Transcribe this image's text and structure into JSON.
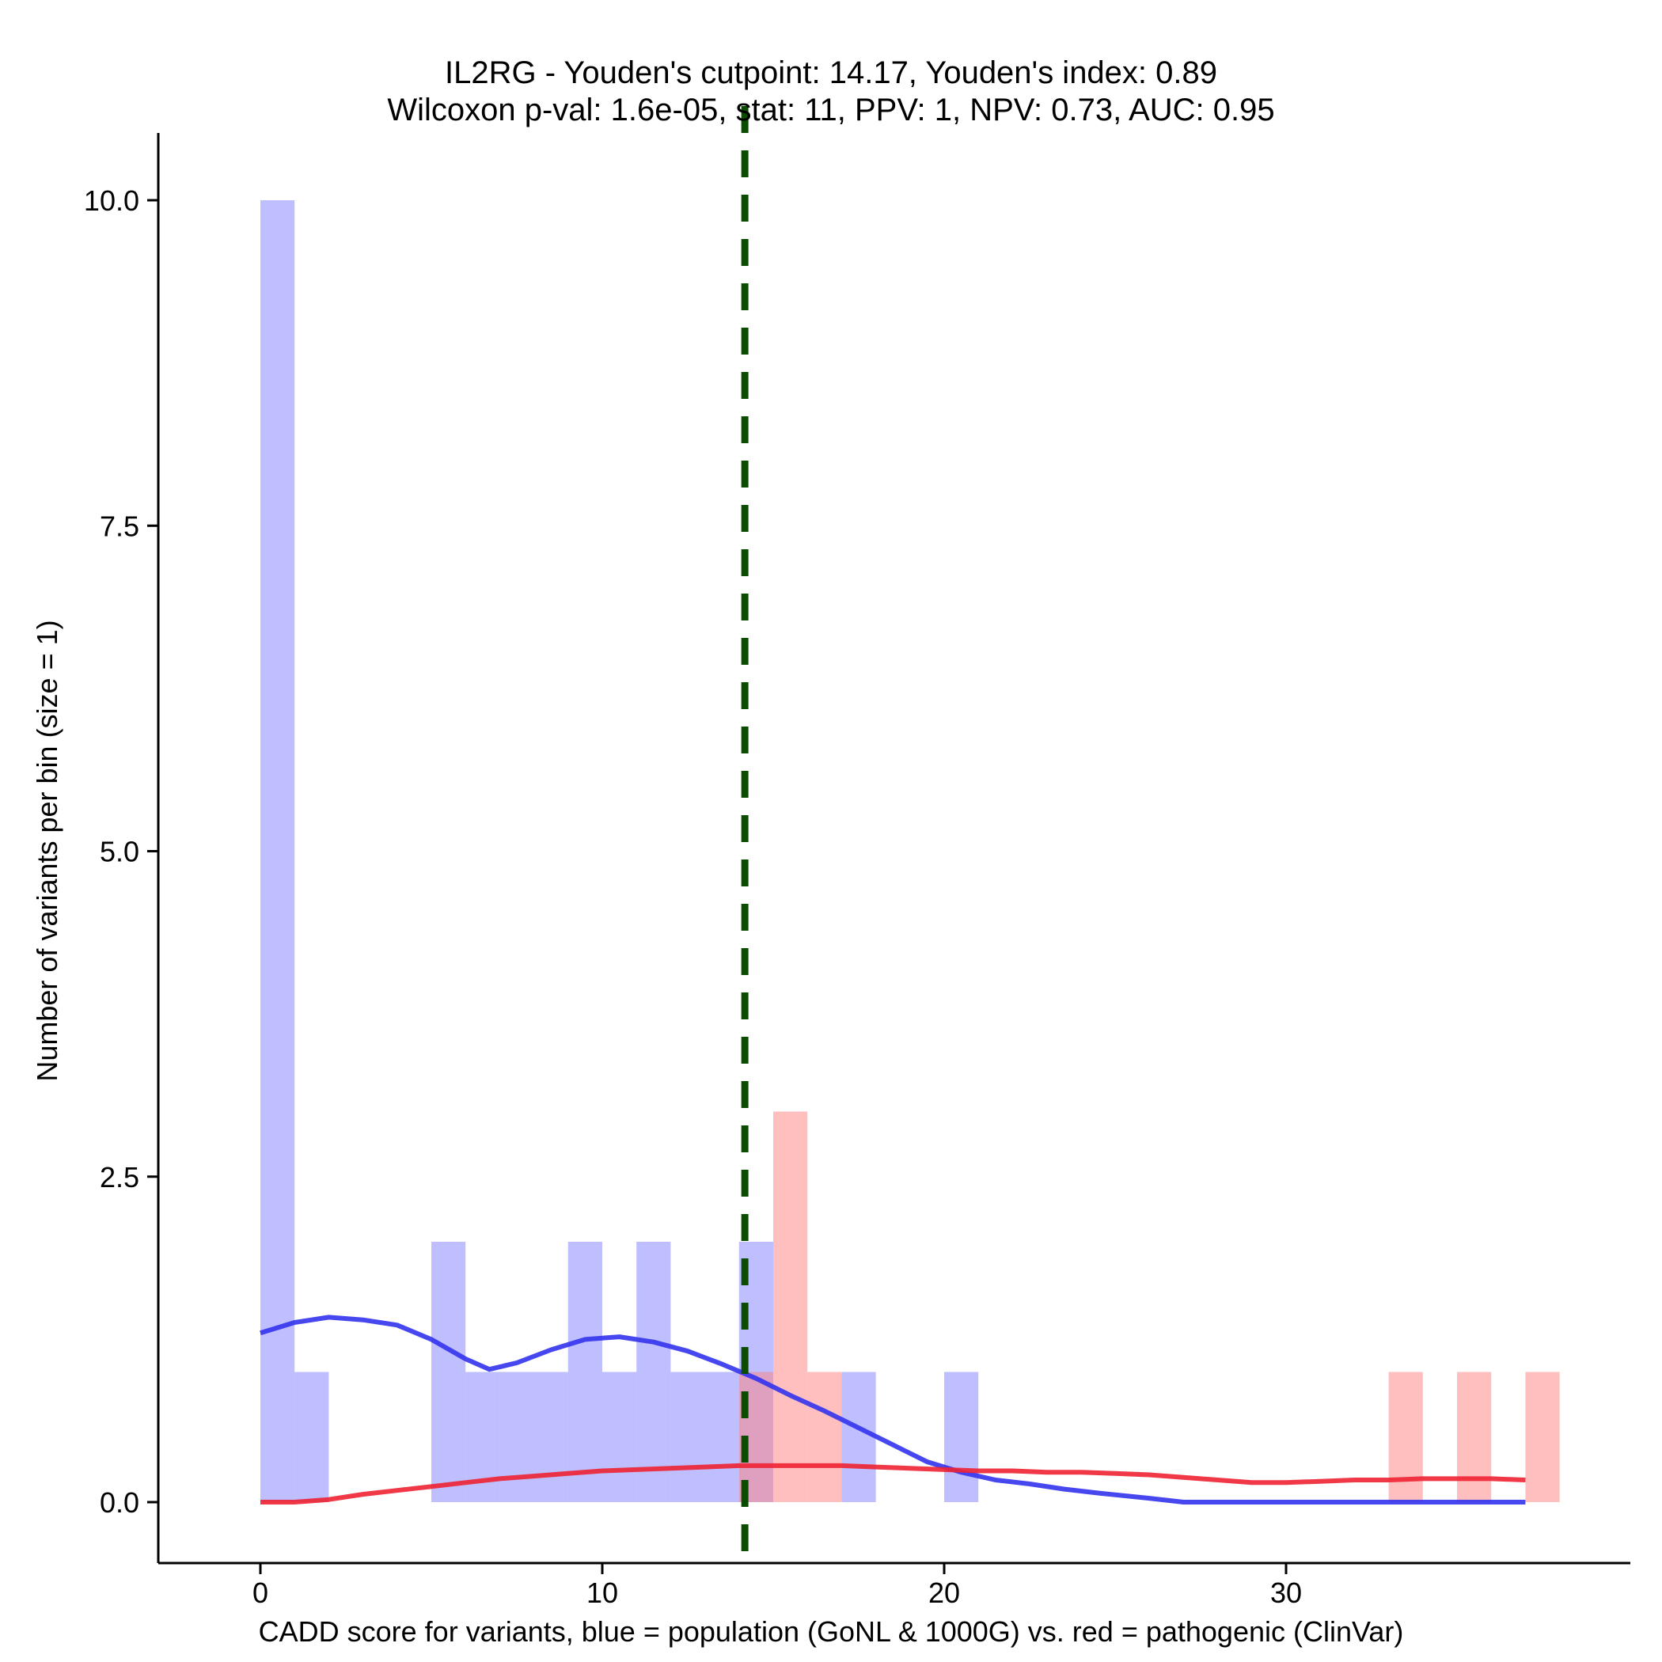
{
  "chart_data": {
    "type": "histogram",
    "title": "IL2RG - Youden's cutpoint: 14.17, Youden's index: 0.89",
    "subtitle": "Wilcoxon p-val: 1.6e-05, stat: 11, PPV: 1, NPV: 0.73, AUC: 0.95",
    "xlabel": "CADD score for variants, blue = population (GoNL & 1000G) vs. red = pathogenic (ClinVar)",
    "ylabel": "Number of variants per bin (size = 1)",
    "xlim": [
      -3,
      40
    ],
    "ylim": [
      -0.5,
      10.5
    ],
    "x_ticks": [
      0,
      10,
      20,
      30
    ],
    "x_tick_labels": [
      "0",
      "10",
      "20",
      "30"
    ],
    "y_ticks": [
      0,
      2.5,
      5,
      7.5,
      10
    ],
    "y_tick_labels": [
      "0.0",
      "2.5",
      "5.0",
      "7.5",
      "10.0"
    ],
    "bin_size": 1,
    "cutpoint": 14.17,
    "series": [
      {
        "name": "population (GoNL & 1000G)",
        "color": "#8080ff",
        "bins": [
          {
            "x": 0,
            "count": 10
          },
          {
            "x": 1,
            "count": 1
          },
          {
            "x": 5,
            "count": 2
          },
          {
            "x": 6,
            "count": 1
          },
          {
            "x": 7,
            "count": 1
          },
          {
            "x": 8,
            "count": 1
          },
          {
            "x": 9,
            "count": 2
          },
          {
            "x": 10,
            "count": 1
          },
          {
            "x": 11,
            "count": 2
          },
          {
            "x": 12,
            "count": 1
          },
          {
            "x": 13,
            "count": 1
          },
          {
            "x": 14,
            "count": 2
          },
          {
            "x": 17,
            "count": 1
          },
          {
            "x": 20,
            "count": 1
          }
        ],
        "density_color": "#3333ee",
        "density": [
          [
            0,
            1.3
          ],
          [
            1,
            1.38
          ],
          [
            2,
            1.42
          ],
          [
            3,
            1.4
          ],
          [
            4,
            1.36
          ],
          [
            5,
            1.25
          ],
          [
            6,
            1.1
          ],
          [
            6.7,
            1.02
          ],
          [
            7.5,
            1.07
          ],
          [
            8.5,
            1.17
          ],
          [
            9.5,
            1.25
          ],
          [
            10.5,
            1.27
          ],
          [
            11.5,
            1.23
          ],
          [
            12.5,
            1.16
          ],
          [
            13.5,
            1.06
          ],
          [
            14.5,
            0.95
          ],
          [
            15.5,
            0.82
          ],
          [
            16.5,
            0.7
          ],
          [
            17.5,
            0.57
          ],
          [
            18.5,
            0.44
          ],
          [
            19.5,
            0.31
          ],
          [
            20.5,
            0.23
          ],
          [
            21.5,
            0.17
          ],
          [
            22.5,
            0.14
          ],
          [
            23.5,
            0.1
          ],
          [
            24.5,
            0.07
          ],
          [
            26,
            0.03
          ],
          [
            27,
            0.0
          ],
          [
            30,
            0.0
          ],
          [
            37,
            0.0
          ]
        ]
      },
      {
        "name": "pathogenic (ClinVar)",
        "color": "#ff8080",
        "bins": [
          {
            "x": 14,
            "count": 1
          },
          {
            "x": 15,
            "count": 3
          },
          {
            "x": 16,
            "count": 1
          },
          {
            "x": 33,
            "count": 1
          },
          {
            "x": 35,
            "count": 1
          },
          {
            "x": 37,
            "count": 1
          }
        ],
        "density_color": "#ee2233",
        "density": [
          [
            0,
            0.0
          ],
          [
            1,
            0.0
          ],
          [
            2,
            0.02
          ],
          [
            3,
            0.06
          ],
          [
            4,
            0.09
          ],
          [
            5,
            0.12
          ],
          [
            6,
            0.15
          ],
          [
            7,
            0.18
          ],
          [
            8,
            0.2
          ],
          [
            9,
            0.22
          ],
          [
            10,
            0.24
          ],
          [
            11,
            0.25
          ],
          [
            12,
            0.26
          ],
          [
            13,
            0.27
          ],
          [
            14,
            0.28
          ],
          [
            15,
            0.28
          ],
          [
            16,
            0.28
          ],
          [
            17,
            0.28
          ],
          [
            18,
            0.27
          ],
          [
            19,
            0.26
          ],
          [
            20,
            0.25
          ],
          [
            21,
            0.24
          ],
          [
            22,
            0.24
          ],
          [
            23,
            0.23
          ],
          [
            24,
            0.23
          ],
          [
            25,
            0.22
          ],
          [
            26,
            0.21
          ],
          [
            27,
            0.19
          ],
          [
            28,
            0.17
          ],
          [
            29,
            0.15
          ],
          [
            30,
            0.15
          ],
          [
            31,
            0.16
          ],
          [
            32,
            0.17
          ],
          [
            33,
            0.17
          ],
          [
            34,
            0.18
          ],
          [
            35,
            0.18
          ],
          [
            36,
            0.18
          ],
          [
            37,
            0.17
          ]
        ]
      }
    ]
  }
}
